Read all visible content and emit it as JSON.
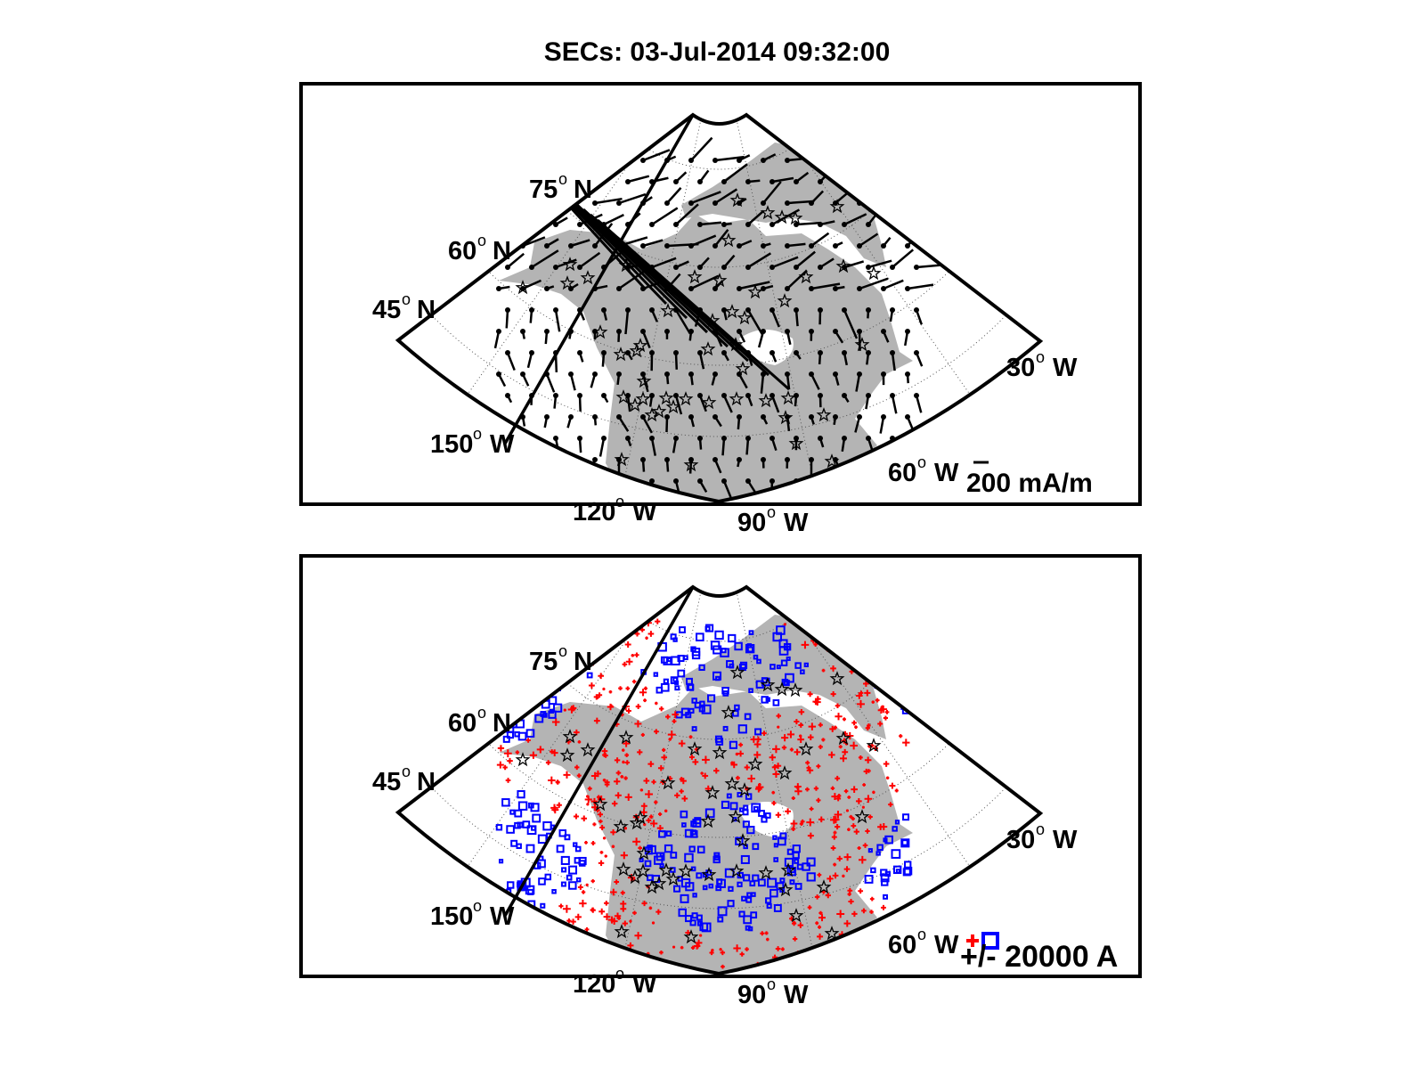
{
  "title": "SECs: 03-Jul-2014 09:32:00",
  "chart_data": [
    {
      "type": "scatter",
      "panel": "top",
      "description_kind": "vector field of horizontal sheet currents on polar map",
      "projection": "polar stereographic sector",
      "lat_labels": [
        {
          "deg": "75",
          "hemi": "N"
        },
        {
          "deg": "60",
          "hemi": "N"
        },
        {
          "deg": "45",
          "hemi": "N"
        }
      ],
      "lon_labels": [
        {
          "deg": "150",
          "hemi": "W"
        },
        {
          "deg": "120",
          "hemi": "W"
        },
        {
          "deg": "90",
          "hemi": "W"
        },
        {
          "deg": "60",
          "hemi": "W"
        },
        {
          "deg": "30",
          "hemi": "W"
        }
      ],
      "degree_symbol": "o",
      "legend": {
        "text": "200 mA/m",
        "position": "bottom-right"
      }
    },
    {
      "type": "scatter",
      "panel": "bottom",
      "description_kind": "signed current amplitudes on polar map",
      "projection": "polar stereographic sector",
      "lat_labels": [
        {
          "deg": "75",
          "hemi": "N"
        },
        {
          "deg": "60",
          "hemi": "N"
        },
        {
          "deg": "45",
          "hemi": "N"
        }
      ],
      "lon_labels": [
        {
          "deg": "150",
          "hemi": "W"
        },
        {
          "deg": "120",
          "hemi": "W"
        },
        {
          "deg": "90",
          "hemi": "W"
        },
        {
          "deg": "60",
          "hemi": "W"
        },
        {
          "deg": "30",
          "hemi": "W"
        }
      ],
      "degree_symbol": "o",
      "legend": {
        "text": "+/- 20000 A",
        "position": "bottom-right"
      },
      "colors": {
        "positive": "#ff0000",
        "negative": "#0000ff"
      }
    }
  ],
  "colors": {
    "land": "#b4b4b4",
    "frame": "#000000",
    "grid": "#555555",
    "vectors": "#000000",
    "positive": "#ff0000",
    "negative": "#0000ff"
  }
}
